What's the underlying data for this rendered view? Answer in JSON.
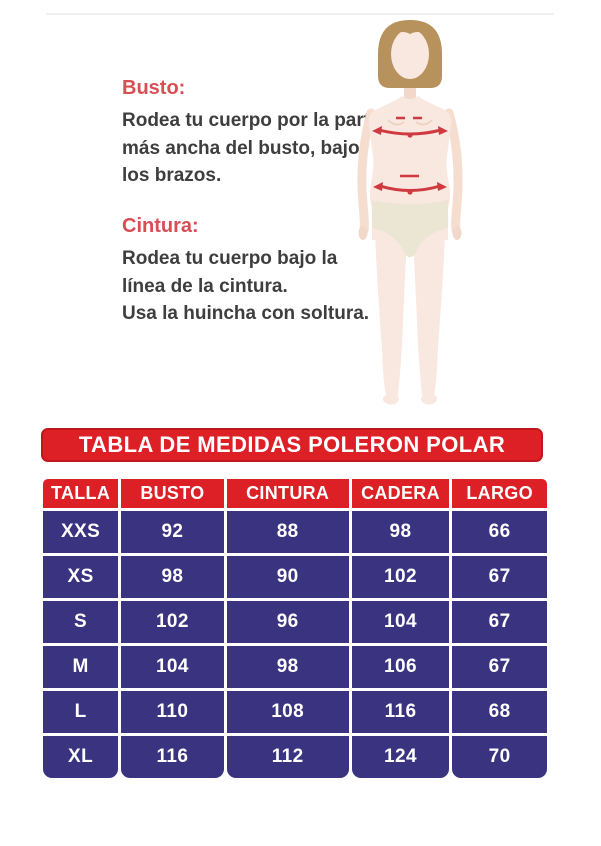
{
  "instructions": {
    "bust": {
      "heading": "Busto:",
      "line1": "Rodea tu cuerpo por la parte",
      "line2": "más ancha del busto, bajo",
      "line3": "los brazos."
    },
    "waist": {
      "heading": "Cintura:",
      "line1": "Rodea tu cuerpo bajo la",
      "line2": "línea de la cintura.",
      "line3": "Usa la huincha con soltura."
    }
  },
  "size_chart": {
    "title": "TABLA DE MEDIDAS POLERON POLAR",
    "columns": [
      "TALLA",
      "BUSTO",
      "CINTURA",
      "CADERA",
      "LARGO"
    ],
    "rows": [
      [
        "XXS",
        "92",
        "88",
        "98",
        "66"
      ],
      [
        "XS",
        "98",
        "90",
        "102",
        "67"
      ],
      [
        "S",
        "102",
        "96",
        "104",
        "67"
      ],
      [
        "M",
        "104",
        "98",
        "106",
        "67"
      ],
      [
        "L",
        "110",
        "108",
        "116",
        "68"
      ],
      [
        "XL",
        "116",
        "112",
        "124",
        "70"
      ]
    ]
  },
  "colors": {
    "table_red": "#dc2026",
    "table_navy": "#3a3380",
    "heading_red": "#d94e55",
    "body_text": "#3e3e3e",
    "hair": "#b8925c",
    "skin": "#f8e8e0",
    "underwear": "#ebe6d3",
    "measure_line_red": "#cf3a40"
  }
}
